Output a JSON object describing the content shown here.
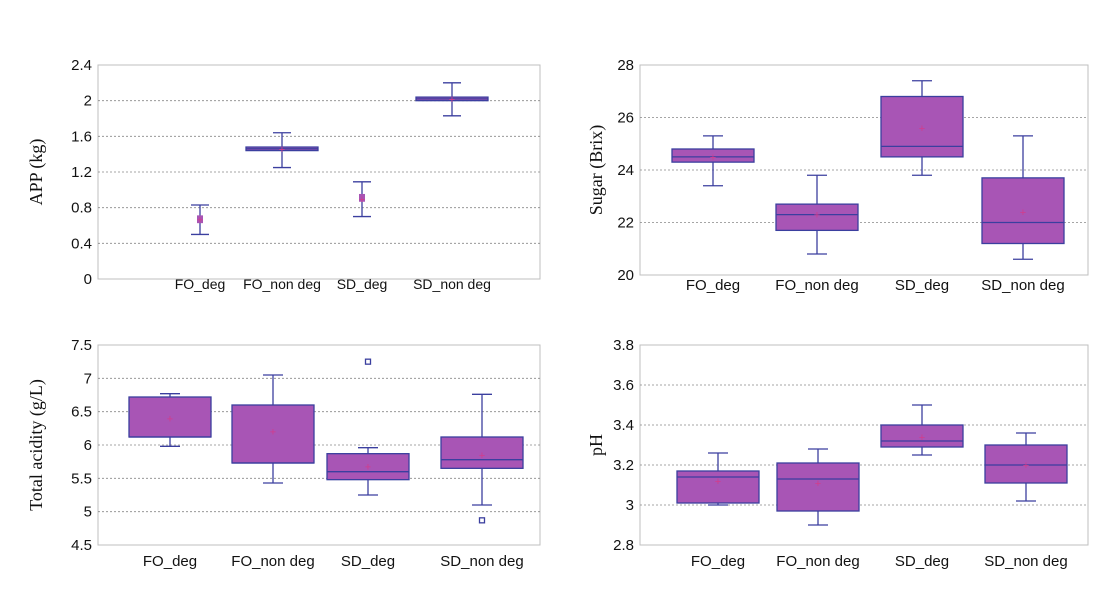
{
  "chart_data": [
    {
      "type": "box",
      "ylabel": "APP (kg)",
      "categories": [
        "FO_deg",
        "FO_non deg",
        "SD_deg",
        "SD_non deg"
      ],
      "ylim": [
        0,
        2.4
      ],
      "yticks": [
        0,
        0.4,
        0.8,
        1.2,
        1.6,
        2,
        2.4
      ],
      "ytick_labels": [
        "0",
        "0.4",
        "0.8",
        "1.2",
        "1.6",
        "2",
        "2.4"
      ],
      "grid": true,
      "colors": {
        "box": "#a855b5",
        "line": "#3b3f9f",
        "grid": "#888888"
      },
      "boxes": [
        {
          "whisker_low": 0.5,
          "q1": 0.66,
          "median": 0.67,
          "q3": 0.68,
          "whisker_high": 0.83,
          "mean": 0.67
        },
        {
          "whisker_low": 1.25,
          "q1": 1.44,
          "median": 1.46,
          "q3": 1.48,
          "whisker_high": 1.64,
          "mean": 1.46
        },
        {
          "whisker_low": 0.7,
          "q1": 0.9,
          "median": 0.91,
          "q3": 0.92,
          "whisker_high": 1.09,
          "mean": 0.9
        },
        {
          "whisker_low": 1.83,
          "q1": 2.0,
          "median": 2.02,
          "q3": 2.04,
          "whisker_high": 2.2,
          "mean": 2.02
        }
      ],
      "outliers": []
    },
    {
      "type": "box",
      "ylabel": "Sugar (Brix)",
      "categories": [
        "FO_deg",
        "FO_non deg",
        "SD_deg",
        "SD_non deg"
      ],
      "ylim": [
        20,
        28
      ],
      "yticks": [
        20,
        22,
        24,
        26,
        28
      ],
      "ytick_labels": [
        "20",
        "22",
        "24",
        "26",
        "28"
      ],
      "grid": true,
      "colors": {
        "box": "#a855b5",
        "line": "#3b3f9f",
        "grid": "#888888"
      },
      "boxes": [
        {
          "whisker_low": 23.4,
          "q1": 24.3,
          "median": 24.5,
          "q3": 24.8,
          "whisker_high": 25.3,
          "mean": 24.5
        },
        {
          "whisker_low": 20.8,
          "q1": 21.7,
          "median": 22.3,
          "q3": 22.7,
          "whisker_high": 23.8,
          "mean": 22.3
        },
        {
          "whisker_low": 23.8,
          "q1": 24.5,
          "median": 24.9,
          "q3": 26.8,
          "whisker_high": 27.4,
          "mean": 25.6
        },
        {
          "whisker_low": 20.6,
          "q1": 21.2,
          "median": 22.0,
          "q3": 23.7,
          "whisker_high": 25.3,
          "mean": 22.4
        }
      ],
      "outliers": []
    },
    {
      "type": "box",
      "ylabel": "Total acidity (g/L)",
      "categories": [
        "FO_deg",
        "FO_non deg",
        "SD_deg",
        "SD_non deg"
      ],
      "ylim": [
        4.5,
        7.5
      ],
      "yticks": [
        4.5,
        5,
        5.5,
        6,
        6.5,
        7,
        7.5
      ],
      "ytick_labels": [
        "4.5",
        "5",
        "5.5",
        "6",
        "6.5",
        "7",
        "7.5"
      ],
      "grid": true,
      "colors": {
        "box": "#a855b5",
        "line": "#3b3f9f",
        "grid": "#888888"
      },
      "boxes": [
        {
          "whisker_low": 5.98,
          "q1": 6.12,
          "median": 6.12,
          "q3": 6.72,
          "whisker_high": 6.77,
          "mean": 6.4
        },
        {
          "whisker_low": 5.43,
          "q1": 5.73,
          "median": 5.73,
          "q3": 6.6,
          "whisker_high": 7.05,
          "mean": 6.2
        },
        {
          "whisker_low": 5.25,
          "q1": 5.48,
          "median": 5.6,
          "q3": 5.87,
          "whisker_high": 5.96,
          "mean": 5.68
        },
        {
          "whisker_low": 5.1,
          "q1": 5.65,
          "median": 5.78,
          "q3": 6.12,
          "whisker_high": 6.76,
          "mean": 5.85
        }
      ],
      "outliers": [
        {
          "category": "SD_deg",
          "value": 7.25
        },
        {
          "category": "SD_non deg",
          "value": 4.87
        }
      ]
    },
    {
      "type": "box",
      "ylabel": "pH",
      "categories": [
        "FO_deg",
        "FO_non deg",
        "SD_deg",
        "SD_non deg"
      ],
      "ylim": [
        2.8,
        3.8
      ],
      "yticks": [
        2.8,
        3.0,
        3.2,
        3.4,
        3.6,
        3.8
      ],
      "ytick_labels": [
        "2.8",
        "3",
        "3.2",
        "3.4",
        "3.6",
        "3.8"
      ],
      "grid": true,
      "colors": {
        "box": "#a855b5",
        "line": "#3b3f9f",
        "grid": "#888888"
      },
      "boxes": [
        {
          "whisker_low": 3.0,
          "q1": 3.01,
          "median": 3.14,
          "q3": 3.17,
          "whisker_high": 3.26,
          "mean": 3.12
        },
        {
          "whisker_low": 2.9,
          "q1": 2.97,
          "median": 3.13,
          "q3": 3.21,
          "whisker_high": 3.28,
          "mean": 3.11
        },
        {
          "whisker_low": 3.25,
          "q1": 3.29,
          "median": 3.32,
          "q3": 3.4,
          "whisker_high": 3.5,
          "mean": 3.34
        },
        {
          "whisker_low": 3.02,
          "q1": 3.11,
          "median": 3.2,
          "q3": 3.3,
          "whisker_high": 3.36,
          "mean": 3.2
        }
      ],
      "outliers": []
    }
  ]
}
